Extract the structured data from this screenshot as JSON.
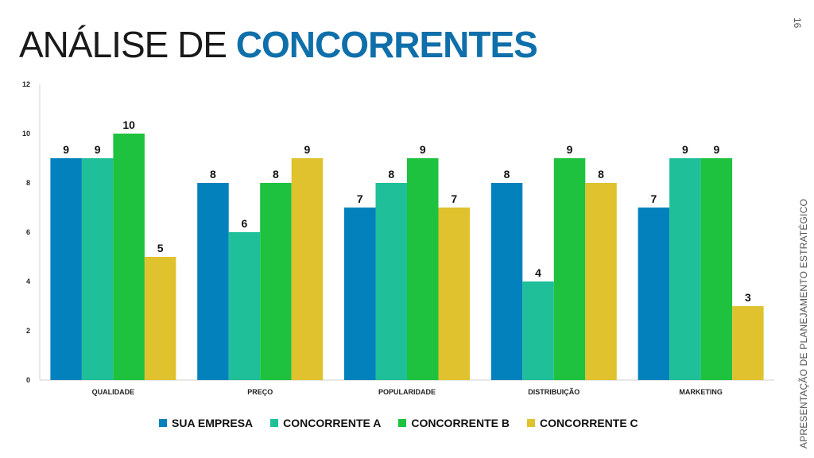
{
  "slide": {
    "title_light": "ANÁLISE DE",
    "title_bold": "CONCORRENTES",
    "page_number": "16",
    "side_text": "APRESENTAÇÃO DE PLANEJAMENTO ESTRATÉGICO"
  },
  "chart_data": {
    "type": "bar",
    "categories": [
      "QUALIDADE",
      "PREÇO",
      "POPULARIDADE",
      "DISTRIBUIÇÃO",
      "MARKETING"
    ],
    "series": [
      {
        "name": "SUA EMPRESA",
        "values": [
          9,
          8,
          7,
          8,
          7
        ],
        "color": "#0281bd"
      },
      {
        "name": "CONCORRENTE A",
        "values": [
          9,
          6,
          8,
          4,
          9
        ],
        "color": "#1fbf9a"
      },
      {
        "name": "CONCORRENTE B",
        "values": [
          10,
          8,
          9,
          9,
          9
        ],
        "color": "#1ec23f"
      },
      {
        "name": "CONCORRENTE C",
        "values": [
          5,
          9,
          7,
          8,
          3
        ],
        "color": "#dfc22e"
      }
    ],
    "ylim": [
      0,
      12
    ],
    "yticks": [
      "0",
      "2",
      "4",
      "6",
      "8",
      "10",
      "12"
    ],
    "grid": false,
    "legend_position": "bottom"
  }
}
